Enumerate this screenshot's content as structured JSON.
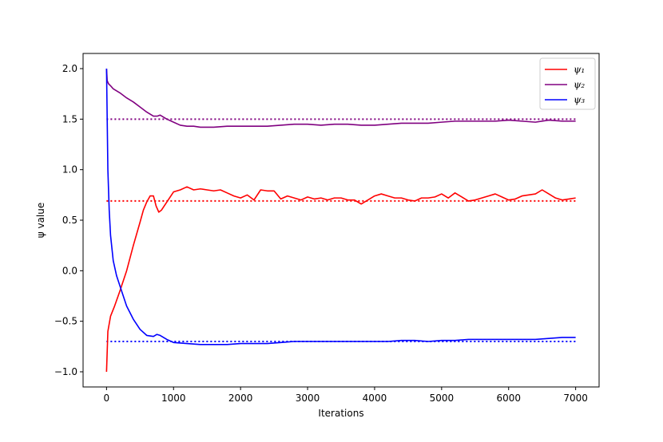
{
  "chart_data": {
    "type": "line",
    "xlabel": "Iterations",
    "ylabel": "ψ value",
    "xlim": [
      -350,
      7350
    ],
    "ylim": [
      -1.15,
      2.15
    ],
    "xticks": [
      0,
      1000,
      2000,
      3000,
      4000,
      5000,
      6000,
      7000
    ],
    "xtick_labels": [
      "0",
      "1000",
      "2000",
      "3000",
      "4000",
      "5000",
      "6000",
      "7000"
    ],
    "yticks": [
      -1.0,
      -0.5,
      0.0,
      0.5,
      1.0,
      1.5,
      2.0
    ],
    "ytick_labels": [
      "−1.0",
      "−0.5",
      "0.0",
      "0.5",
      "1.0",
      "1.5",
      "2.0"
    ],
    "grid": false,
    "legend_position": "top-right",
    "series": [
      {
        "name": "ψ₁",
        "color": "#ff0000",
        "target": 0.69,
        "x": [
          0,
          20,
          60,
          120,
          200,
          300,
          400,
          500,
          550,
          600,
          650,
          700,
          740,
          780,
          820,
          900,
          1000,
          1100,
          1200,
          1300,
          1400,
          1500,
          1600,
          1700,
          1800,
          1900,
          2000,
          2100,
          2200,
          2300,
          2400,
          2500,
          2600,
          2700,
          2800,
          2900,
          3000,
          3100,
          3200,
          3300,
          3400,
          3500,
          3600,
          3700,
          3800,
          3900,
          4000,
          4100,
          4200,
          4300,
          4400,
          4500,
          4600,
          4700,
          4800,
          4900,
          5000,
          5100,
          5200,
          5300,
          5400,
          5500,
          5600,
          5700,
          5800,
          5900,
          6000,
          6100,
          6200,
          6300,
          6400,
          6500,
          6600,
          6700,
          6800,
          6900,
          7000
        ],
        "y": [
          -1.0,
          -0.6,
          -0.45,
          -0.35,
          -0.2,
          0.0,
          0.25,
          0.48,
          0.6,
          0.68,
          0.74,
          0.74,
          0.64,
          0.58,
          0.6,
          0.68,
          0.78,
          0.8,
          0.83,
          0.8,
          0.81,
          0.8,
          0.79,
          0.8,
          0.77,
          0.74,
          0.72,
          0.75,
          0.7,
          0.8,
          0.79,
          0.79,
          0.71,
          0.74,
          0.72,
          0.7,
          0.73,
          0.71,
          0.72,
          0.7,
          0.72,
          0.72,
          0.7,
          0.7,
          0.66,
          0.7,
          0.74,
          0.76,
          0.74,
          0.72,
          0.72,
          0.7,
          0.69,
          0.72,
          0.72,
          0.73,
          0.76,
          0.72,
          0.77,
          0.73,
          0.69,
          0.7,
          0.72,
          0.74,
          0.76,
          0.73,
          0.7,
          0.71,
          0.74,
          0.75,
          0.76,
          0.8,
          0.76,
          0.72,
          0.7,
          0.71,
          0.72
        ]
      },
      {
        "name": "ψ₂",
        "color": "#800080",
        "target": 1.5,
        "x": [
          0,
          10,
          30,
          60,
          100,
          200,
          300,
          400,
          500,
          600,
          700,
          760,
          800,
          900,
          1000,
          1100,
          1200,
          1300,
          1400,
          1500,
          1600,
          1800,
          2000,
          2200,
          2400,
          2600,
          2800,
          3000,
          3200,
          3400,
          3600,
          3800,
          4000,
          4200,
          4400,
          4600,
          4800,
          5000,
          5200,
          5400,
          5600,
          5800,
          6000,
          6200,
          6400,
          6600,
          6800,
          7000
        ],
        "y": [
          2.0,
          1.88,
          1.85,
          1.83,
          1.8,
          1.76,
          1.71,
          1.67,
          1.62,
          1.57,
          1.53,
          1.53,
          1.54,
          1.5,
          1.47,
          1.44,
          1.43,
          1.43,
          1.42,
          1.42,
          1.42,
          1.43,
          1.43,
          1.43,
          1.43,
          1.44,
          1.45,
          1.45,
          1.44,
          1.45,
          1.45,
          1.44,
          1.44,
          1.45,
          1.46,
          1.46,
          1.46,
          1.47,
          1.48,
          1.48,
          1.48,
          1.48,
          1.49,
          1.48,
          1.47,
          1.49,
          1.48,
          1.48
        ]
      },
      {
        "name": "ψ₃",
        "color": "#0000ff",
        "target": -0.7,
        "x": [
          0,
          10,
          20,
          40,
          60,
          100,
          150,
          200,
          300,
          400,
          500,
          600,
          700,
          750,
          800,
          900,
          1000,
          1200,
          1400,
          1600,
          1800,
          2000,
          2200,
          2400,
          2600,
          2800,
          3000,
          3200,
          3400,
          3600,
          3800,
          4000,
          4200,
          4400,
          4600,
          4800,
          5000,
          5200,
          5400,
          5600,
          5800,
          6000,
          6200,
          6400,
          6600,
          6800,
          7000
        ],
        "y": [
          2.0,
          1.5,
          1.0,
          0.6,
          0.35,
          0.1,
          -0.05,
          -0.15,
          -0.35,
          -0.48,
          -0.58,
          -0.64,
          -0.65,
          -0.63,
          -0.64,
          -0.68,
          -0.71,
          -0.72,
          -0.73,
          -0.73,
          -0.73,
          -0.72,
          -0.72,
          -0.72,
          -0.71,
          -0.7,
          -0.7,
          -0.7,
          -0.7,
          -0.7,
          -0.7,
          -0.7,
          -0.7,
          -0.69,
          -0.69,
          -0.7,
          -0.69,
          -0.69,
          -0.68,
          -0.68,
          -0.68,
          -0.68,
          -0.68,
          -0.68,
          -0.67,
          -0.66,
          -0.66
        ]
      }
    ]
  }
}
